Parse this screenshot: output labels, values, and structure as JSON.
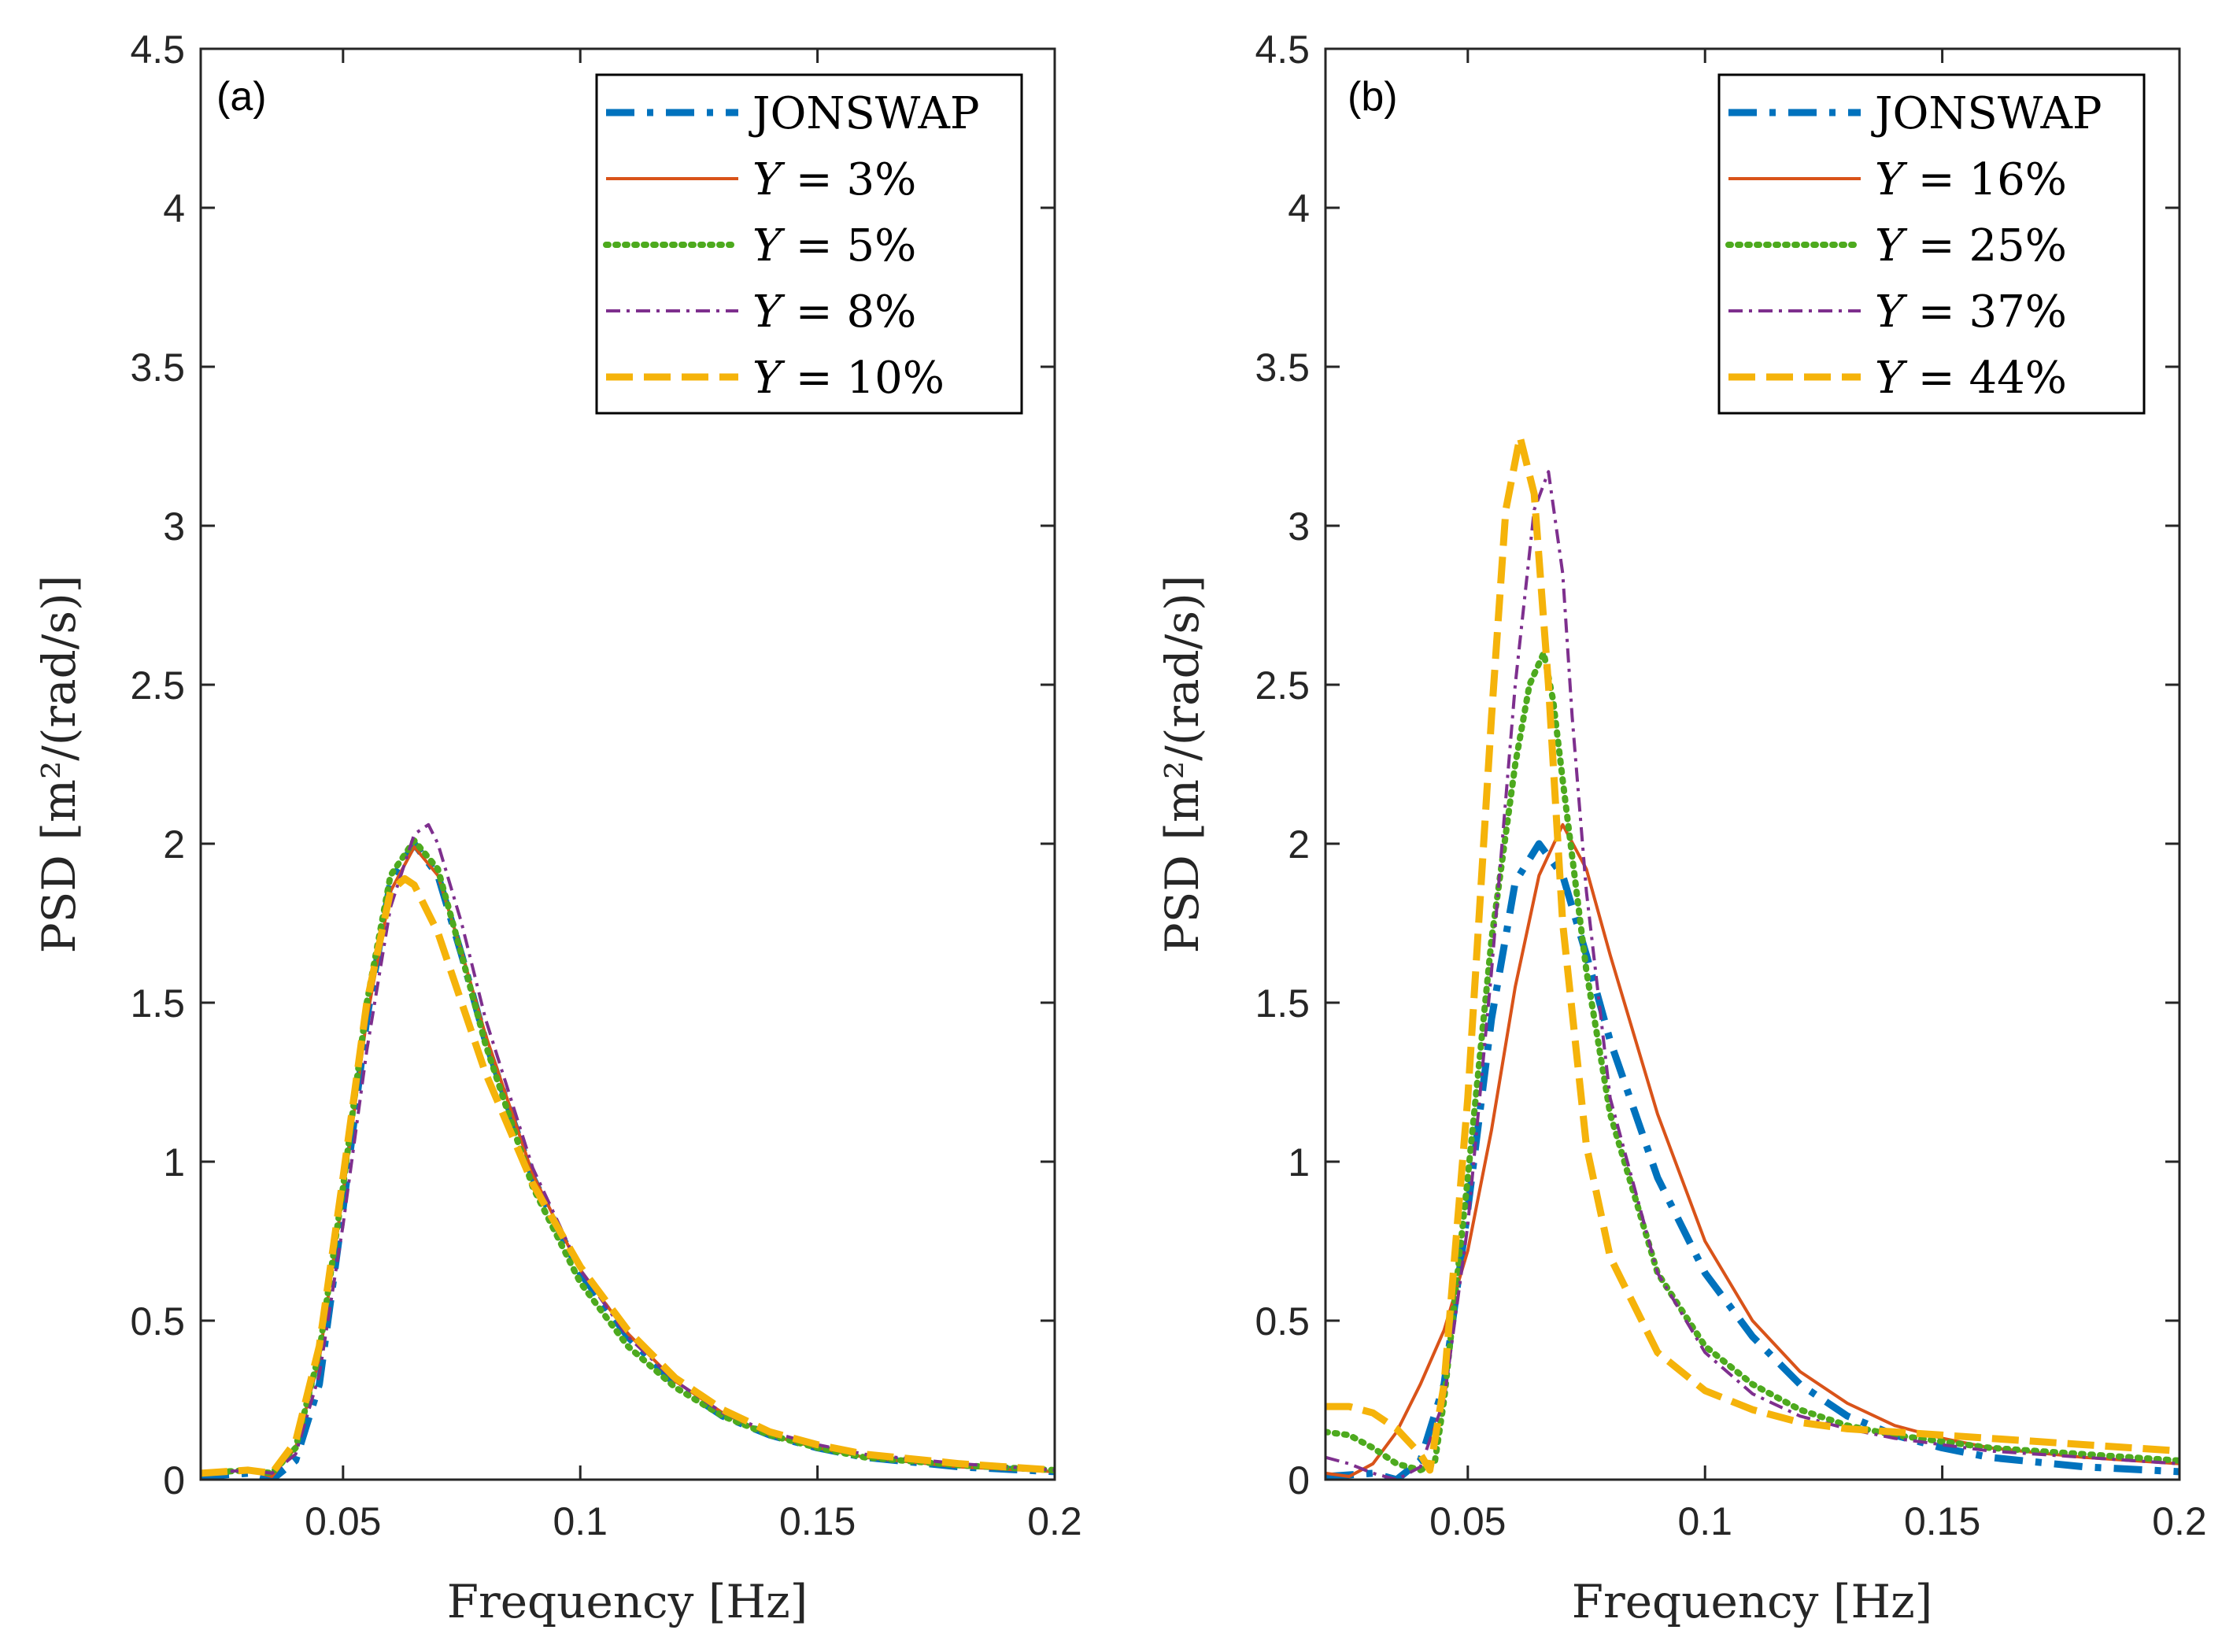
{
  "chart_data": [
    {
      "type": "line",
      "panel_label": "(a)",
      "xlabel": "Frequency [Hz]",
      "ylabel": "PSD  [m²/(rad/s)]",
      "xlim": [
        0.02,
        0.2
      ],
      "ylim": [
        0,
        4.5
      ],
      "xticks": [
        0.05,
        0.1,
        0.15,
        0.2
      ],
      "xtick_labels": [
        "0.05",
        "0.1",
        "0.15",
        "0.2"
      ],
      "yticks": [
        0,
        0.5,
        1,
        1.5,
        2,
        2.5,
        3,
        3.5,
        4,
        4.5
      ],
      "ytick_labels": [
        "0",
        "0.5",
        "1",
        "1.5",
        "2",
        "2.5",
        "3",
        "3.5",
        "4",
        "4.5"
      ],
      "legend_location": "top-right",
      "series": [
        {
          "name": "JONSWAP",
          "legend_var": "",
          "legend_rest": "JONSWAP",
          "color": "#0072BD",
          "style": "dashdot-thick",
          "x": [
            0.02,
            0.03,
            0.035,
            0.04,
            0.045,
            0.05,
            0.055,
            0.06,
            0.065,
            0.07,
            0.075,
            0.08,
            0.09,
            0.1,
            0.11,
            0.12,
            0.13,
            0.14,
            0.15,
            0.16,
            0.18,
            0.2
          ],
          "y": [
            0.01,
            0.02,
            0.0,
            0.06,
            0.3,
            0.85,
            1.45,
            1.88,
            2.0,
            1.9,
            1.65,
            1.38,
            0.95,
            0.65,
            0.45,
            0.3,
            0.2,
            0.14,
            0.1,
            0.07,
            0.04,
            0.025
          ]
        },
        {
          "name": "Y = 3%",
          "legend_var": "Y",
          "legend_rest": " = 3%",
          "color": "#D95319",
          "style": "solid",
          "x": [
            0.02,
            0.03,
            0.035,
            0.04,
            0.045,
            0.05,
            0.055,
            0.06,
            0.065,
            0.07,
            0.075,
            0.08,
            0.09,
            0.1,
            0.11,
            0.12,
            0.13,
            0.14,
            0.15,
            0.16,
            0.18,
            0.2
          ],
          "y": [
            0.02,
            0.03,
            0.01,
            0.1,
            0.38,
            0.9,
            1.45,
            1.85,
            1.99,
            1.9,
            1.66,
            1.4,
            0.96,
            0.66,
            0.46,
            0.31,
            0.21,
            0.14,
            0.1,
            0.07,
            0.04,
            0.025
          ]
        },
        {
          "name": "Y = 5%",
          "legend_var": "Y",
          "legend_rest": " = 5%",
          "color": "#4DAA1E",
          "style": "dotted",
          "x": [
            0.02,
            0.03,
            0.035,
            0.04,
            0.045,
            0.05,
            0.055,
            0.06,
            0.065,
            0.07,
            0.075,
            0.08,
            0.09,
            0.1,
            0.11,
            0.12,
            0.13,
            0.14,
            0.15,
            0.16,
            0.18,
            0.2
          ],
          "y": [
            0.02,
            0.03,
            0.02,
            0.1,
            0.4,
            0.92,
            1.5,
            1.9,
            2.01,
            1.92,
            1.65,
            1.37,
            0.92,
            0.62,
            0.42,
            0.29,
            0.2,
            0.14,
            0.1,
            0.07,
            0.045,
            0.03
          ]
        },
        {
          "name": "Y = 8%",
          "legend_var": "Y",
          "legend_rest": " = 8%",
          "color": "#7E2F8E",
          "style": "dashdot-thin",
          "x": [
            0.02,
            0.03,
            0.035,
            0.04,
            0.045,
            0.05,
            0.055,
            0.06,
            0.065,
            0.068,
            0.07,
            0.075,
            0.08,
            0.09,
            0.1,
            0.11,
            0.12,
            0.13,
            0.14,
            0.15,
            0.16,
            0.18,
            0.2
          ],
          "y": [
            0.02,
            0.03,
            0.02,
            0.08,
            0.33,
            0.8,
            1.35,
            1.8,
            2.03,
            2.06,
            2.0,
            1.75,
            1.45,
            0.98,
            0.66,
            0.45,
            0.31,
            0.21,
            0.15,
            0.11,
            0.08,
            0.05,
            0.03
          ]
        },
        {
          "name": "Y = 10%",
          "legend_var": "Y",
          "legend_rest": " = 10%",
          "color": "#F5B30A",
          "style": "dashed",
          "x": [
            0.02,
            0.03,
            0.035,
            0.04,
            0.045,
            0.05,
            0.055,
            0.06,
            0.063,
            0.065,
            0.07,
            0.075,
            0.08,
            0.09,
            0.1,
            0.11,
            0.12,
            0.13,
            0.14,
            0.15,
            0.16,
            0.18,
            0.2
          ],
          "y": [
            0.02,
            0.03,
            0.02,
            0.12,
            0.42,
            0.95,
            1.5,
            1.85,
            1.89,
            1.87,
            1.72,
            1.5,
            1.28,
            0.93,
            0.67,
            0.47,
            0.32,
            0.22,
            0.15,
            0.11,
            0.08,
            0.05,
            0.03
          ]
        }
      ]
    },
    {
      "type": "line",
      "panel_label": "(b)",
      "xlabel": "Frequency [Hz]",
      "ylabel": "PSD  [m²/(rad/s)]",
      "xlim": [
        0.02,
        0.2
      ],
      "ylim": [
        0,
        4.5
      ],
      "xticks": [
        0.05,
        0.1,
        0.15,
        0.2
      ],
      "xtick_labels": [
        "0.05",
        "0.1",
        "0.15",
        "0.2"
      ],
      "yticks": [
        0,
        0.5,
        1,
        1.5,
        2,
        2.5,
        3,
        3.5,
        4,
        4.5
      ],
      "ytick_labels": [
        "0",
        "0.5",
        "1",
        "1.5",
        "2",
        "2.5",
        "3",
        "3.5",
        "4",
        "4.5"
      ],
      "legend_location": "top-right",
      "series": [
        {
          "name": "JONSWAP",
          "legend_var": "",
          "legend_rest": "JONSWAP",
          "color": "#0072BD",
          "style": "dashdot-thick",
          "x": [
            0.02,
            0.03,
            0.035,
            0.04,
            0.045,
            0.05,
            0.055,
            0.06,
            0.065,
            0.07,
            0.075,
            0.08,
            0.09,
            0.1,
            0.11,
            0.12,
            0.13,
            0.14,
            0.15,
            0.16,
            0.18,
            0.2
          ],
          "y": [
            0.01,
            0.02,
            0.0,
            0.06,
            0.3,
            0.85,
            1.45,
            1.88,
            2.0,
            1.9,
            1.65,
            1.38,
            0.95,
            0.65,
            0.45,
            0.3,
            0.2,
            0.14,
            0.1,
            0.07,
            0.04,
            0.025
          ]
        },
        {
          "name": "Y = 16%",
          "legend_var": "Y",
          "legend_rest": " = 16%",
          "color": "#D95319",
          "style": "solid",
          "x": [
            0.02,
            0.025,
            0.03,
            0.035,
            0.04,
            0.045,
            0.05,
            0.055,
            0.06,
            0.065,
            0.07,
            0.075,
            0.08,
            0.09,
            0.1,
            0.11,
            0.12,
            0.13,
            0.14,
            0.15,
            0.16,
            0.18,
            0.2
          ],
          "y": [
            0.02,
            0.01,
            0.05,
            0.15,
            0.3,
            0.47,
            0.72,
            1.1,
            1.55,
            1.9,
            2.06,
            1.92,
            1.65,
            1.15,
            0.75,
            0.5,
            0.34,
            0.24,
            0.17,
            0.13,
            0.1,
            0.07,
            0.05
          ]
        },
        {
          "name": "Y = 25%",
          "legend_var": "Y",
          "legend_rest": " = 25%",
          "color": "#4DAA1E",
          "style": "dotted",
          "x": [
            0.02,
            0.025,
            0.03,
            0.035,
            0.04,
            0.043,
            0.045,
            0.05,
            0.055,
            0.06,
            0.063,
            0.066,
            0.068,
            0.07,
            0.075,
            0.08,
            0.09,
            0.1,
            0.11,
            0.12,
            0.13,
            0.14,
            0.15,
            0.16,
            0.18,
            0.2
          ],
          "y": [
            0.15,
            0.14,
            0.1,
            0.05,
            0.03,
            0.05,
            0.25,
            0.95,
            1.7,
            2.25,
            2.5,
            2.6,
            2.45,
            2.2,
            1.6,
            1.15,
            0.65,
            0.42,
            0.3,
            0.22,
            0.17,
            0.14,
            0.12,
            0.1,
            0.08,
            0.06
          ]
        },
        {
          "name": "Y = 37%",
          "legend_var": "Y",
          "legend_rest": " = 37%",
          "color": "#7E2F8E",
          "style": "dashdot-thin",
          "x": [
            0.02,
            0.025,
            0.03,
            0.035,
            0.04,
            0.045,
            0.05,
            0.055,
            0.06,
            0.064,
            0.067,
            0.07,
            0.072,
            0.075,
            0.08,
            0.09,
            0.1,
            0.11,
            0.12,
            0.13,
            0.14,
            0.15,
            0.16,
            0.18,
            0.2
          ],
          "y": [
            0.07,
            0.05,
            0.02,
            0.0,
            0.04,
            0.25,
            0.8,
            1.6,
            2.5,
            3.05,
            3.17,
            2.85,
            2.4,
            1.85,
            1.2,
            0.65,
            0.4,
            0.27,
            0.2,
            0.16,
            0.13,
            0.11,
            0.09,
            0.07,
            0.05
          ]
        },
        {
          "name": "Y = 44%",
          "legend_var": "Y",
          "legend_rest": " = 44%",
          "color": "#F5B30A",
          "style": "dashed",
          "x": [
            0.02,
            0.025,
            0.03,
            0.035,
            0.04,
            0.042,
            0.045,
            0.05,
            0.055,
            0.058,
            0.061,
            0.064,
            0.067,
            0.07,
            0.075,
            0.08,
            0.09,
            0.1,
            0.11,
            0.12,
            0.13,
            0.14,
            0.15,
            0.16,
            0.18,
            0.2
          ],
          "y": [
            0.23,
            0.23,
            0.21,
            0.16,
            0.08,
            0.03,
            0.3,
            1.2,
            2.4,
            3.05,
            3.28,
            3.1,
            2.5,
            1.75,
            1.05,
            0.7,
            0.4,
            0.28,
            0.22,
            0.18,
            0.16,
            0.15,
            0.14,
            0.13,
            0.11,
            0.09
          ]
        }
      ]
    }
  ]
}
